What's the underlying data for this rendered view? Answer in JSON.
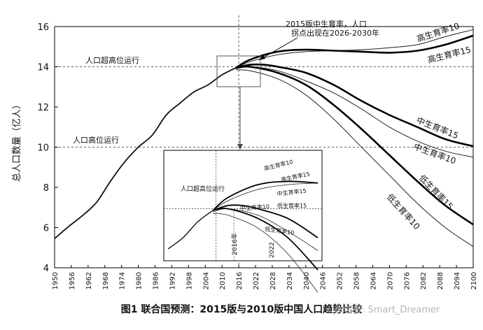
{
  "caption": "图1 联合国预测：2015版与2010版中国人口趋势比较",
  "watermark": "微信号: Smart_Dreamer",
  "chart_data": {
    "type": "line",
    "title": "",
    "xlabel": "",
    "ylabel": "总人口数量（亿人）",
    "xlim": [
      1950,
      2100
    ],
    "ylim": [
      4,
      16
    ],
    "x_ticks": [
      1950,
      1956,
      1962,
      1968,
      1974,
      1980,
      1986,
      1992,
      1998,
      2004,
      2010,
      2016,
      2022,
      2028,
      2034,
      2040,
      2046,
      2052,
      2058,
      2064,
      2070,
      2076,
      2082,
      2088,
      2094,
      2100
    ],
    "y_ticks": [
      4,
      6,
      8,
      10,
      12,
      14,
      16
    ],
    "reference_lines": [
      {
        "y": 14,
        "label": "人口超高位运行"
      },
      {
        "y": 10,
        "label": "人口高位运行"
      },
      {
        "x": 2016,
        "label": ""
      }
    ],
    "historical": {
      "x": [
        1950,
        1955,
        1960,
        1965,
        1970,
        1975,
        1980,
        1985,
        1990,
        1995,
        2000,
        2005,
        2010,
        2015
      ],
      "y": [
        5.45,
        6.05,
        6.6,
        7.25,
        8.3,
        9.25,
        10.0,
        10.6,
        11.6,
        12.2,
        12.75,
        13.1,
        13.6,
        13.95
      ]
    },
    "series": [
      {
        "name": "高生育率10",
        "edition": "2010",
        "x": [
          2015,
          2020,
          2030,
          2040,
          2050,
          2060,
          2070,
          2080,
          2090,
          2100
        ],
        "y": [
          13.95,
          14.25,
          14.6,
          14.75,
          14.8,
          14.85,
          14.95,
          15.1,
          15.5,
          15.85
        ]
      },
      {
        "name": "高生育率15",
        "edition": "2015",
        "x": [
          2015,
          2020,
          2030,
          2040,
          2050,
          2060,
          2070,
          2080,
          2090,
          2100
        ],
        "y": [
          13.95,
          14.35,
          14.75,
          14.85,
          14.8,
          14.75,
          14.7,
          14.8,
          15.1,
          15.55
        ]
      },
      {
        "name": "中生育率15",
        "edition": "2015",
        "x": [
          2015,
          2020,
          2025,
          2030,
          2040,
          2050,
          2060,
          2070,
          2080,
          2090,
          2100
        ],
        "y": [
          13.95,
          14.1,
          14.1,
          14.0,
          13.7,
          13.1,
          12.3,
          11.6,
          11.0,
          10.4,
          10.05
        ]
      },
      {
        "name": "中生育率10",
        "edition": "2010",
        "x": [
          2015,
          2020,
          2030,
          2040,
          2050,
          2060,
          2070,
          2080,
          2090,
          2100
        ],
        "y": [
          13.9,
          14.0,
          13.8,
          13.3,
          12.7,
          11.9,
          11.0,
          10.3,
          9.8,
          9.5
        ]
      },
      {
        "name": "低生育率15",
        "edition": "2015",
        "x": [
          2015,
          2020,
          2030,
          2040,
          2050,
          2060,
          2070,
          2080,
          2090,
          2100
        ],
        "y": [
          13.95,
          14.0,
          13.7,
          13.1,
          12.1,
          10.9,
          9.6,
          8.3,
          7.1,
          6.15
        ]
      },
      {
        "name": "低生育率10",
        "edition": "2010",
        "x": [
          2015,
          2020,
          2030,
          2040,
          2050,
          2060,
          2070,
          2080,
          2090,
          2100
        ],
        "y": [
          13.85,
          13.8,
          13.4,
          12.6,
          11.4,
          10.0,
          8.6,
          7.2,
          6.0,
          5.05
        ]
      }
    ],
    "annotations": [
      {
        "text": "2015版中生育率，人口",
        "x": 2037,
        "y": 15.8
      },
      {
        "text": "拐点出现在2026-2030年",
        "x": 2037,
        "y": 15.55
      }
    ],
    "inset": {
      "xlim": [
        2000,
        2050
      ],
      "ylim": [
        12.6,
        15.6
      ],
      "labels": {
        "superhigh": "人口超高位运行",
        "year2016": "2016年",
        "year2022": "2022",
        "high10": "高生育率10",
        "high15": "高生育率15",
        "mid15": "中生育率15",
        "mid10": "中生育率10",
        "low15": "低生育率15",
        "low10": "低生育率10"
      }
    }
  }
}
